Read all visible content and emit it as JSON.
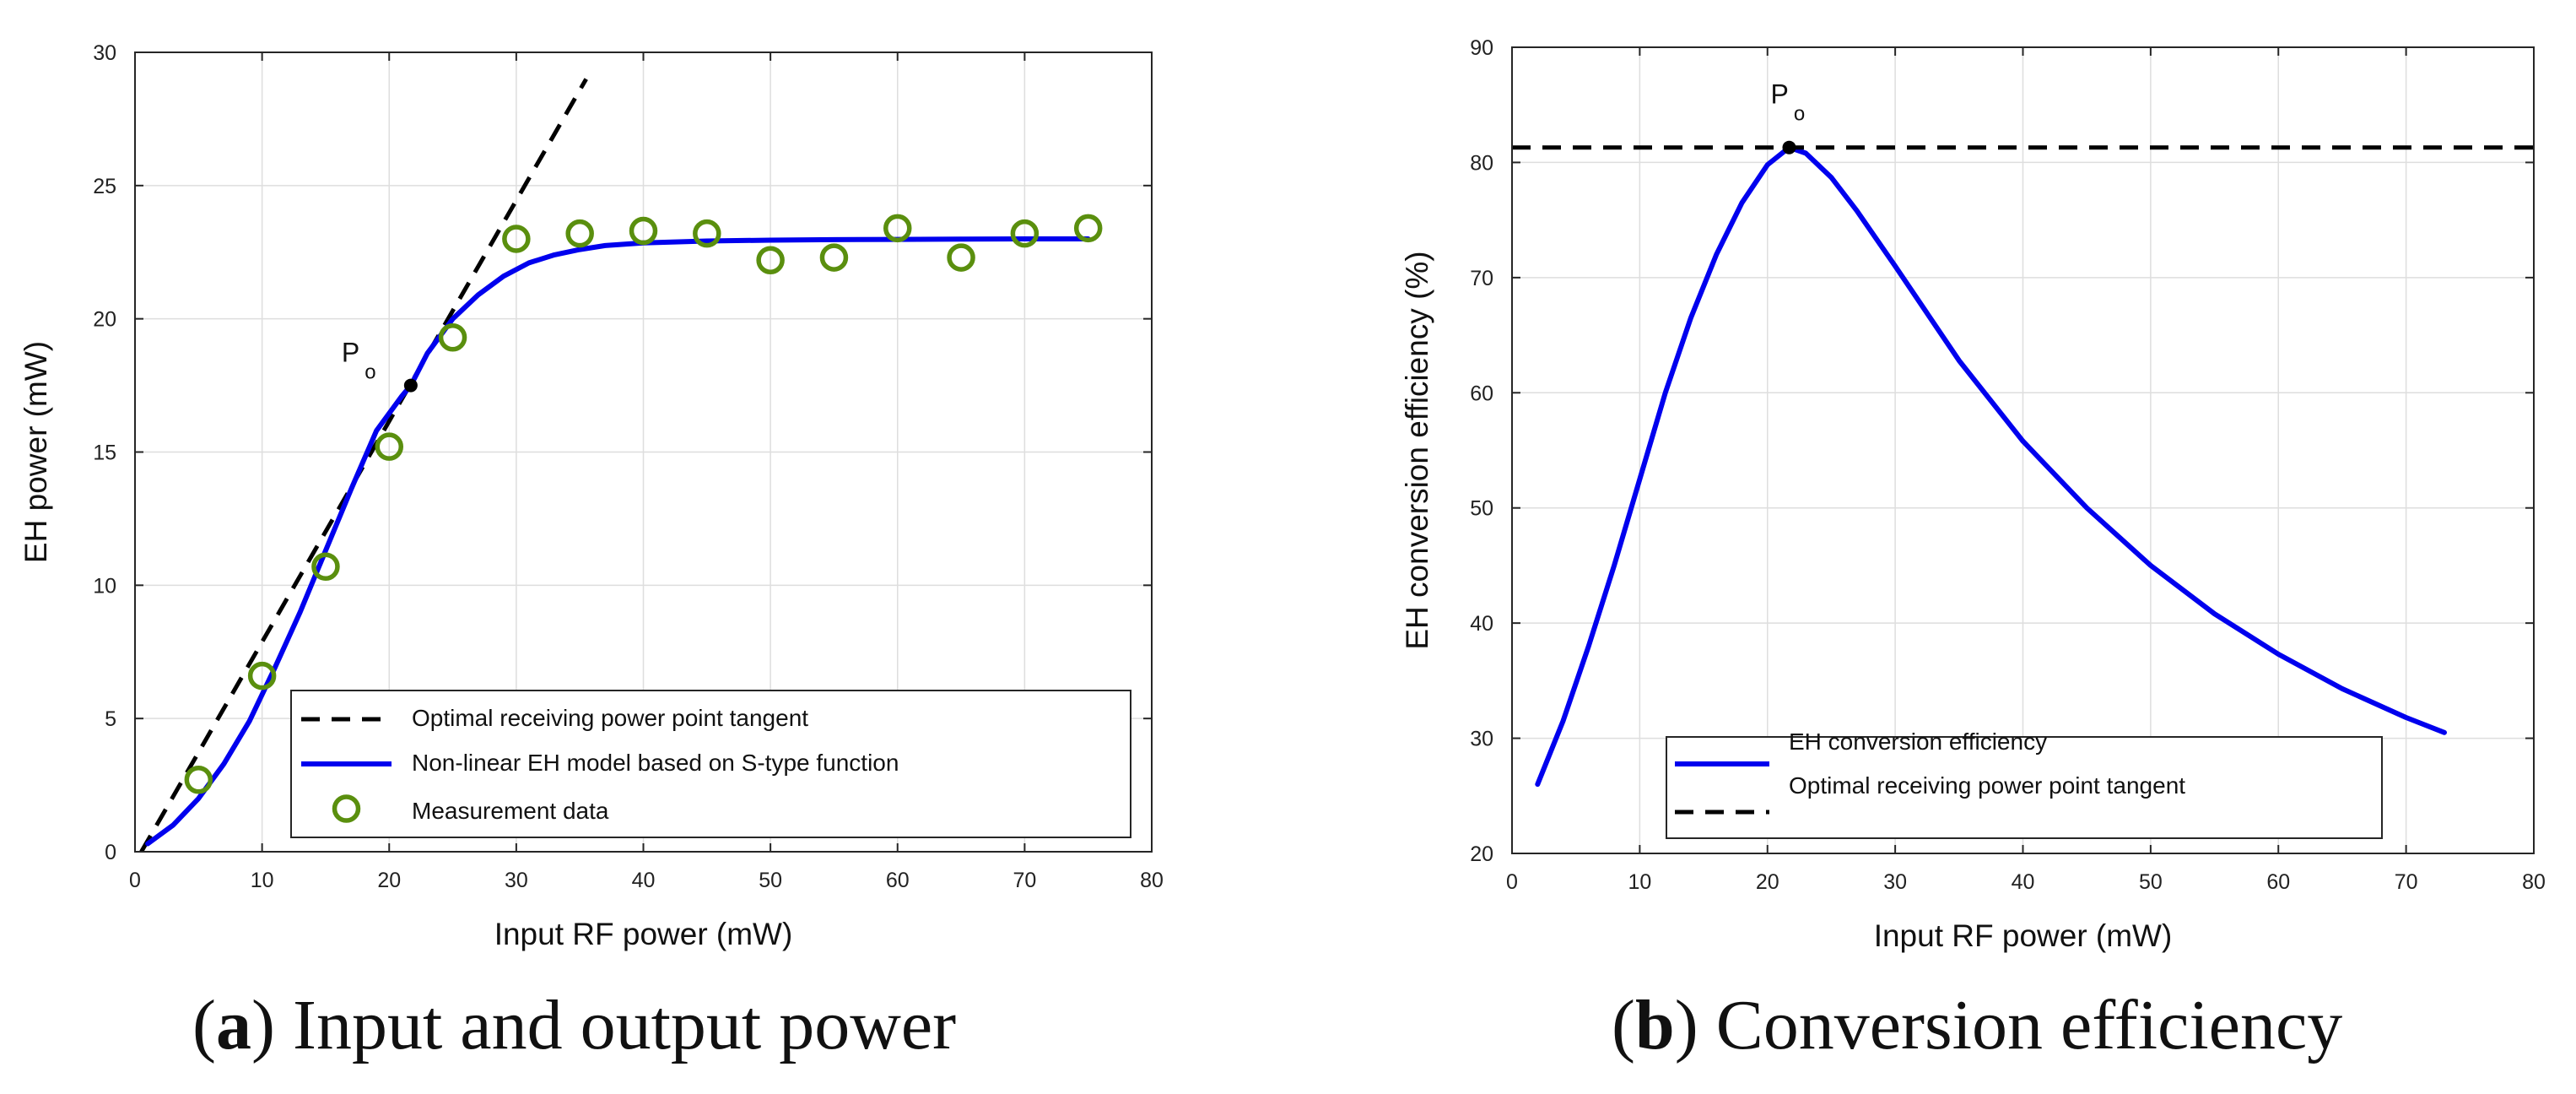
{
  "chart_data": [
    {
      "type": "line",
      "id": "a",
      "xlabel": "Input RF power (mW)",
      "ylabel": "EH power (mW)",
      "xlim": [
        0,
        80
      ],
      "ylim": [
        0,
        30
      ],
      "xticks": [
        0,
        10,
        20,
        30,
        40,
        50,
        60,
        70,
        80
      ],
      "yticks": [
        0,
        5,
        10,
        15,
        20,
        25,
        30
      ],
      "xtick_labels": [
        "0",
        "10",
        "20",
        "30",
        "40",
        "50",
        "60",
        "70",
        "80"
      ],
      "ytick_labels": [
        "0",
        "5",
        "10",
        "15",
        "20",
        "25",
        "30"
      ],
      "grid": true,
      "legend_position": "bottom-right",
      "caption": {
        "letter": "a",
        "open": "(",
        "close": ") ",
        "text": "Input and output power"
      },
      "annotation": {
        "main": "P",
        "sub": "o",
        "x": 21.7,
        "y": 17.5
      },
      "series": [
        {
          "name": "Optimal receiving power point tangent",
          "style": "dashed",
          "color": "#000000",
          "x": [
            0.5,
            35.5
          ],
          "y": [
            0,
            29
          ]
        },
        {
          "name": "Non-linear EH model based on S-type function",
          "style": "solid",
          "color": "#0000ee",
          "x": [
            1.0,
            3.0,
            5.0,
            7.0,
            9.0,
            11.0,
            13.0,
            15.0,
            17.0,
            19.0,
            21.0,
            21.7,
            23.0,
            25.0,
            27.0,
            29.0,
            31.0,
            33.0,
            35.0,
            37.0,
            40.0,
            45.0,
            50.0,
            55.0,
            60.0,
            65.0,
            70.0,
            75.0
          ],
          "y": [
            0.3,
            1.0,
            2.0,
            3.3,
            4.9,
            6.9,
            9.0,
            11.3,
            13.6,
            15.8,
            17.1,
            17.5,
            18.7,
            20.0,
            20.9,
            21.6,
            22.1,
            22.4,
            22.6,
            22.75,
            22.85,
            22.92,
            22.95,
            22.97,
            22.98,
            22.99,
            23.0,
            23.0
          ]
        },
        {
          "name": "Measurement data",
          "style": "markers",
          "color": "#5a8f0e",
          "x": [
            5,
            10,
            15,
            20,
            25,
            30,
            35,
            40,
            45,
            50,
            55,
            60,
            65,
            70,
            75
          ],
          "y": [
            2.7,
            6.6,
            10.7,
            15.2,
            19.3,
            23.0,
            23.2,
            23.3,
            23.2,
            22.2,
            22.3,
            23.4,
            22.3,
            23.2,
            23.4
          ]
        }
      ]
    },
    {
      "type": "line",
      "id": "b",
      "xlabel": "Input RF power (mW)",
      "ylabel": "EH conversion efficiency (%)",
      "xlim": [
        0,
        80
      ],
      "ylim": [
        20,
        90
      ],
      "xticks": [
        0,
        10,
        20,
        30,
        40,
        50,
        60,
        70,
        80
      ],
      "yticks": [
        20,
        30,
        40,
        50,
        60,
        70,
        80,
        90
      ],
      "xtick_labels": [
        "0",
        "10",
        "20",
        "30",
        "40",
        "50",
        "60",
        "70",
        "80"
      ],
      "ytick_labels": [
        "20",
        "30",
        "40",
        "50",
        "60",
        "70",
        "80",
        "90"
      ],
      "grid": true,
      "legend_position": "bottom-right",
      "caption": {
        "letter": "b",
        "open": "(",
        "close": ") ",
        "text": "Conversion efficiency"
      },
      "annotation": {
        "main": "P",
        "sub": "o",
        "x": 21.7,
        "y": 81.3
      },
      "series": [
        {
          "name": "EH conversion efficiency",
          "style": "solid",
          "color": "#0000ee",
          "x": [
            2.0,
            4.0,
            6.0,
            8.0,
            10.0,
            12.0,
            14.0,
            16.0,
            18.0,
            20.0,
            21.7,
            23.0,
            25.0,
            27.0,
            30.0,
            35.0,
            40.0,
            45.0,
            50.0,
            55.0,
            60.0,
            65.0,
            70.0,
            73.0
          ],
          "y": [
            26.0,
            31.5,
            38.0,
            45.0,
            52.5,
            60.0,
            66.5,
            72.0,
            76.5,
            79.8,
            81.3,
            80.8,
            78.7,
            75.8,
            71.0,
            62.8,
            55.8,
            50.0,
            45.0,
            40.8,
            37.3,
            34.3,
            31.8,
            30.5
          ]
        },
        {
          "name": "Optimal receiving power point tangent",
          "style": "dashed",
          "color": "#000000",
          "x": [
            0,
            80
          ],
          "y": [
            81.3,
            81.3
          ]
        }
      ]
    }
  ]
}
